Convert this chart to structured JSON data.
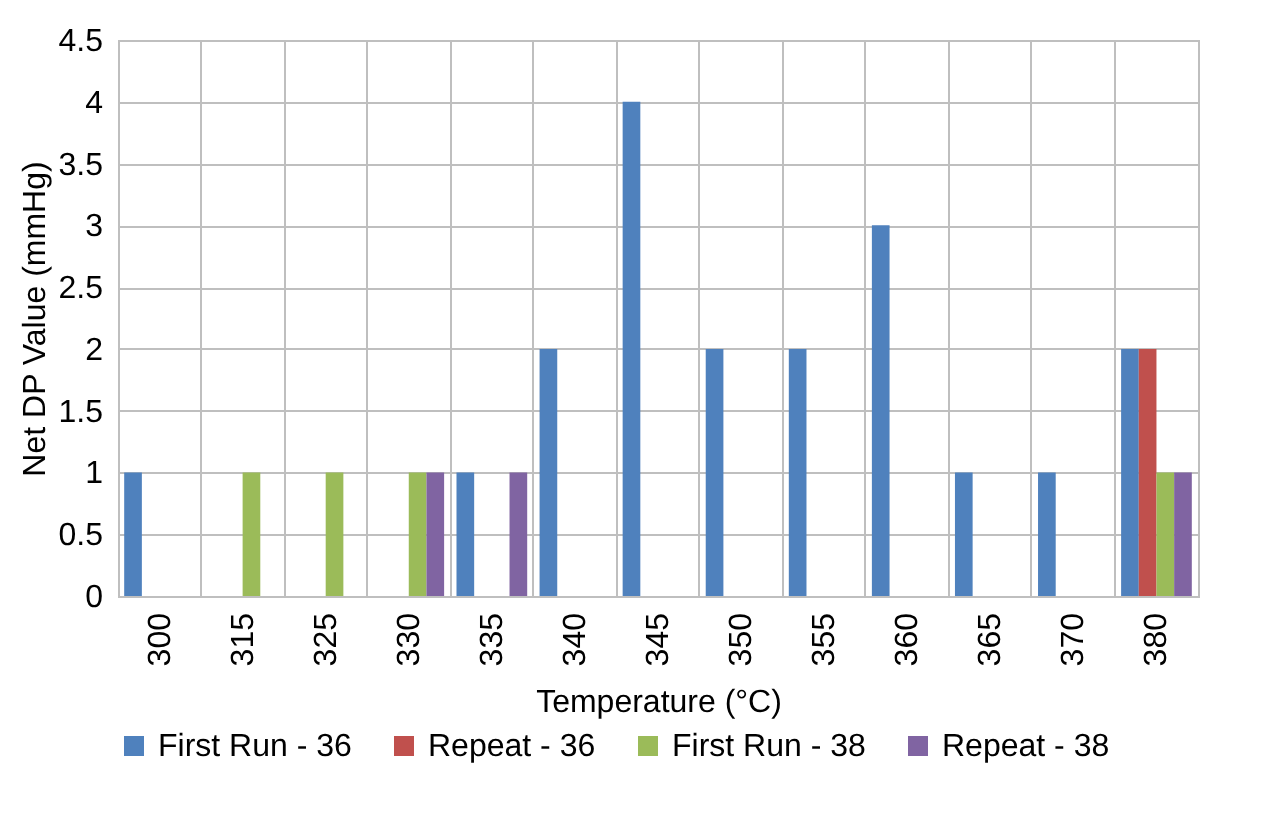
{
  "chart_data": {
    "type": "bar",
    "xlabel": "Temperature (°C)",
    "ylabel": "Net DP Value (mmHg)",
    "categories": [
      "300",
      "315",
      "325",
      "330",
      "335",
      "340",
      "345",
      "350",
      "355",
      "360",
      "365",
      "370",
      "380"
    ],
    "series": [
      {
        "name": "First Run - 36",
        "color": "#4f81bd",
        "values": [
          1,
          0,
          0,
          0,
          1,
          2,
          4,
          2,
          2,
          3,
          1,
          1,
          2
        ]
      },
      {
        "name": "Repeat - 36",
        "color": "#c0504d",
        "values": [
          0,
          0,
          0,
          0,
          0,
          0,
          0,
          0,
          0,
          0,
          0,
          0,
          2
        ]
      },
      {
        "name": "First Run - 38",
        "color": "#9bbb59",
        "values": [
          0,
          1,
          1,
          1,
          0,
          0,
          0,
          0,
          0,
          0,
          0,
          0,
          1
        ]
      },
      {
        "name": "Repeat - 38",
        "color": "#8064a2",
        "values": [
          0,
          0,
          0,
          1,
          1,
          0,
          0,
          0,
          0,
          0,
          0,
          0,
          1
        ]
      }
    ],
    "ylim": [
      0,
      4.5
    ],
    "yticks": [
      0,
      0.5,
      1,
      1.5,
      2,
      2.5,
      3,
      3.5,
      4,
      4.5
    ],
    "grid": true,
    "legend": "bottom"
  }
}
